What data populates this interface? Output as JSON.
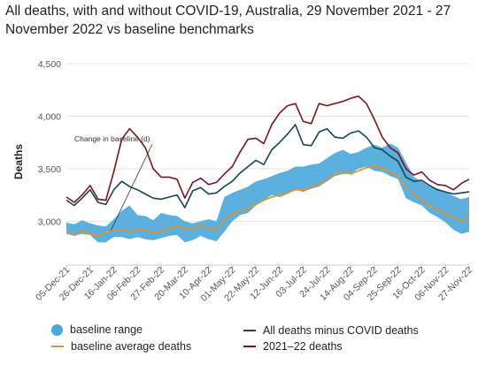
{
  "title": "All deaths, with and without COVID-19, Australia, 29 November 2021 - 27 November 2022 vs baseline benchmarks",
  "colors": {
    "baseline_range": "#4aa7d9",
    "baseline_average": "#d9953a",
    "all_minus_covid": "#17444f",
    "all_deaths": "#7b1420",
    "grid": "#e4e4e4"
  },
  "chart_data": {
    "type": "line",
    "title": "All deaths, with and without COVID-19, Australia, 29 November 2021 - 27 November 2022 vs baseline benchmarks",
    "ylabel": "Deaths",
    "xlabel": "",
    "ylim": [
      2650,
      4500
    ],
    "yticks": [
      3000,
      3500,
      4000,
      4500
    ],
    "ytick_labels": [
      "3,000",
      "3,500",
      "4,000",
      "4,500"
    ],
    "grid": true,
    "legend_position": "bottom",
    "x_tick_labels": [
      "05-Dec-21",
      "26-Dec-21",
      "16-Jan-22",
      "06-Feb-22",
      "27-Feb-22",
      "20-Mar-22",
      "10-Apr-22",
      "01-May-22",
      "22-May-22",
      "12-Jun-22",
      "03-Jul-22",
      "24-Jul-22",
      "14-Aug-22",
      "04-Sep-22",
      "25-Sep-22",
      "16-Oct-22",
      "06-Nov-22",
      "27-Nov-22"
    ],
    "x": [
      "05-Dec-21",
      "12-Dec-21",
      "19-Dec-21",
      "26-Dec-21",
      "02-Jan-22",
      "09-Jan-22",
      "16-Jan-22",
      "23-Jan-22",
      "30-Jan-22",
      "06-Feb-22",
      "13-Feb-22",
      "20-Feb-22",
      "27-Feb-22",
      "06-Mar-22",
      "13-Mar-22",
      "20-Mar-22",
      "27-Mar-22",
      "03-Apr-22",
      "10-Apr-22",
      "17-Apr-22",
      "24-Apr-22",
      "01-May-22",
      "08-May-22",
      "15-May-22",
      "22-May-22",
      "29-May-22",
      "05-Jun-22",
      "12-Jun-22",
      "19-Jun-22",
      "26-Jun-22",
      "03-Jul-22",
      "10-Jul-22",
      "17-Jul-22",
      "24-Jul-22",
      "31-Jul-22",
      "07-Aug-22",
      "14-Aug-22",
      "21-Aug-22",
      "28-Aug-22",
      "04-Sep-22",
      "11-Sep-22",
      "18-Sep-22",
      "25-Sep-22",
      "02-Oct-22",
      "09-Oct-22",
      "16-Oct-22",
      "23-Oct-22",
      "30-Oct-22",
      "06-Nov-22",
      "13-Nov-22",
      "20-Nov-22",
      "27-Nov-22"
    ],
    "series": [
      {
        "name": "baseline range",
        "kind": "range",
        "low": [
          2880,
          2860,
          2880,
          2870,
          2800,
          2800,
          2850,
          2850,
          2830,
          2850,
          2830,
          2820,
          2840,
          2860,
          2870,
          2800,
          2820,
          2860,
          2830,
          2810,
          2900,
          3000,
          3060,
          3080,
          3150,
          3200,
          3250,
          3230,
          3260,
          3300,
          3280,
          3310,
          3330,
          3380,
          3430,
          3450,
          3450,
          3500,
          3520,
          3480,
          3470,
          3430,
          3400,
          3220,
          3180,
          3150,
          3080,
          3040,
          2990,
          2920,
          2880,
          2900
        ],
        "high": [
          2990,
          2970,
          3010,
          2980,
          2960,
          2950,
          3020,
          3100,
          3150,
          3060,
          3050,
          3010,
          3080,
          3060,
          3050,
          3000,
          2980,
          3000,
          3020,
          3000,
          3230,
          3270,
          3300,
          3330,
          3380,
          3400,
          3430,
          3460,
          3480,
          3520,
          3520,
          3540,
          3550,
          3600,
          3650,
          3680,
          3640,
          3660,
          3700,
          3730,
          3700,
          3740,
          3700,
          3560,
          3420,
          3380,
          3330,
          3310,
          3280,
          3240,
          3210,
          3230
        ]
      },
      {
        "name": "baseline average deaths",
        "kind": "line",
        "values": [
          2900,
          2880,
          2910,
          2890,
          2860,
          2900,
          2920,
          2920,
          2900,
          2930,
          2910,
          2900,
          2910,
          2930,
          2950,
          2930,
          2920,
          2960,
          2930,
          2920,
          3010,
          3070,
          3090,
          3120,
          3160,
          3200,
          3230,
          3250,
          3270,
          3300,
          3300,
          3320,
          3350,
          3400,
          3450,
          3480,
          3450,
          3480,
          3510,
          3530,
          3500,
          3470,
          3430,
          3330,
          3260,
          3200,
          3150,
          3110,
          3070,
          3040,
          3000,
          3040
        ]
      },
      {
        "name": "All deaths minus COVID deaths",
        "kind": "line",
        "values": [
          3200,
          3150,
          3220,
          3300,
          3180,
          3160,
          3300,
          3380,
          3330,
          3300,
          3260,
          3220,
          3210,
          3230,
          3250,
          3130,
          3290,
          3320,
          3260,
          3270,
          3330,
          3380,
          3460,
          3520,
          3580,
          3540,
          3680,
          3750,
          3830,
          3920,
          3730,
          3720,
          3850,
          3880,
          3800,
          3790,
          3840,
          3860,
          3800,
          3700,
          3680,
          3620,
          3570,
          3420,
          3380,
          3390,
          3340,
          3300,
          3280,
          3260,
          3270,
          3280
        ]
      },
      {
        "name": "2021–22 deaths",
        "kind": "line",
        "values": [
          3230,
          3180,
          3250,
          3340,
          3210,
          3200,
          3470,
          3780,
          3880,
          3800,
          3700,
          3500,
          3420,
          3420,
          3400,
          3220,
          3370,
          3410,
          3350,
          3370,
          3450,
          3520,
          3660,
          3780,
          3790,
          3740,
          3920,
          4030,
          4100,
          4120,
          3950,
          3930,
          4120,
          4100,
          4120,
          4140,
          4170,
          4190,
          4120,
          3970,
          3800,
          3700,
          3650,
          3500,
          3440,
          3470,
          3390,
          3350,
          3340,
          3300,
          3360,
          3400
        ]
      }
    ],
    "annotations": [
      {
        "text": "Change in baseline (d)",
        "x": "06-Feb-22"
      }
    ]
  }
}
